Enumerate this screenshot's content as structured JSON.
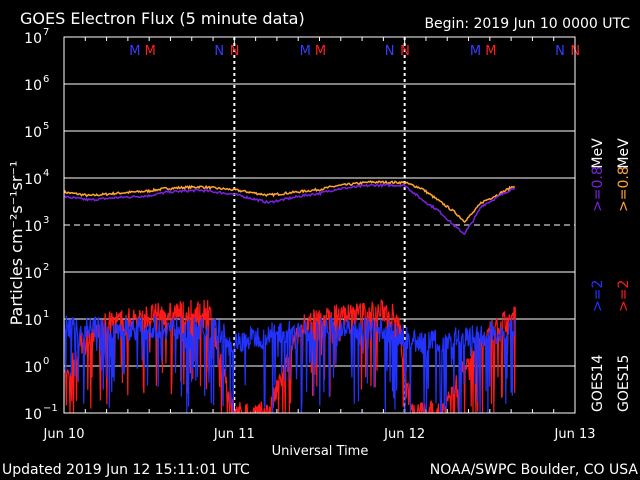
{
  "header": {
    "title": "GOES Electron Flux (5 minute data)",
    "begin": "Begin: 2019 Jun 10 0000 UTC"
  },
  "footer": {
    "updated": "Updated 2019 Jun 12 15:11:01 UTC",
    "credit": "NOAA/SWPC Boulder, CO USA"
  },
  "chart_data": {
    "type": "line",
    "title": "GOES Electron Flux (5 minute data)",
    "xlabel": "Universal Time",
    "ylabel": "Particles cm⁻²s⁻¹sr⁻¹",
    "yscale": "log",
    "ylim": [
      0.1,
      10000000.0
    ],
    "xlim_days": [
      0,
      3
    ],
    "x_ticks": [
      "Jun 10",
      "Jun 11",
      "Jun 12",
      "Jun 13"
    ],
    "y_ticks": [
      {
        "base": "10",
        "exp": "7"
      },
      {
        "base": "10",
        "exp": "6"
      },
      {
        "base": "10",
        "exp": "5"
      },
      {
        "base": "10",
        "exp": "4"
      },
      {
        "base": "10",
        "exp": "3"
      },
      {
        "base": "10",
        "exp": "2"
      },
      {
        "base": "10",
        "exp": "1"
      },
      {
        "base": "10",
        "exp": "0"
      },
      {
        "base": "10",
        "exp": "−1"
      }
    ],
    "threshold": 1000,
    "grid": true,
    "markers": [
      {
        "label": "M",
        "color": "#3a3aff",
        "day": 0.43
      },
      {
        "label": "M",
        "color": "#ff2020",
        "day": 0.52
      },
      {
        "label": "N",
        "color": "#3a3aff",
        "day": 0.93
      },
      {
        "label": "N",
        "color": "#ff2020",
        "day": 1.02
      },
      {
        "label": "M",
        "color": "#3a3aff",
        "day": 1.43
      },
      {
        "label": "M",
        "color": "#ff2020",
        "day": 1.52
      },
      {
        "label": "N",
        "color": "#3a3aff",
        "day": 1.93
      },
      {
        "label": "N",
        "color": "#ff2020",
        "day": 2.02
      },
      {
        "label": "M",
        "color": "#3a3aff",
        "day": 2.43
      },
      {
        "label": "M",
        "color": "#ff2020",
        "day": 2.52
      },
      {
        "label": "N",
        "color": "#3a3aff",
        "day": 2.93
      },
      {
        "label": "N",
        "color": "#ff2020",
        "day": 3.02
      }
    ],
    "series": [
      {
        "name": ">=0.8 MeV",
        "satellite": "GOES15",
        "color": "#ffa530",
        "x": [
          0,
          0.15,
          0.3,
          0.5,
          0.6,
          0.8,
          1.0,
          1.2,
          1.4,
          1.5,
          1.6,
          1.8,
          2.0,
          2.1,
          2.3,
          2.35,
          2.4,
          2.45,
          2.55,
          2.65
        ],
        "y": [
          5000,
          4200,
          4700,
          5300,
          6000,
          6500,
          5600,
          4300,
          5200,
          5700,
          6800,
          8200,
          8000,
          6000,
          1800,
          1200,
          1800,
          3000,
          4500,
          7000
        ]
      },
      {
        "name": ">=0.8 MeV",
        "satellite": "GOES14",
        "color": "#7a22e0",
        "x": [
          0,
          0.15,
          0.3,
          0.5,
          0.6,
          0.8,
          1.0,
          1.2,
          1.4,
          1.5,
          1.6,
          1.8,
          2.0,
          2.1,
          2.2,
          2.3,
          2.35,
          2.4,
          2.45,
          2.55,
          2.65
        ],
        "y": [
          4000,
          3400,
          3800,
          4200,
          5000,
          5500,
          4500,
          3000,
          4200,
          4700,
          5800,
          7000,
          7000,
          3500,
          2000,
          900,
          650,
          1200,
          2500,
          4000,
          6500
        ]
      },
      {
        "name": ">=2 MeV",
        "satellite": "GOES14",
        "color": "#2233ff",
        "x": [
          0,
          0.3,
          0.6,
          0.9,
          1.0,
          1.2,
          1.5,
          1.8,
          1.95,
          2.1,
          2.3,
          2.5,
          2.65
        ],
        "y": [
          7,
          6,
          6.5,
          6,
          3,
          5,
          6,
          6,
          5,
          3,
          4,
          5,
          6
        ]
      },
      {
        "name": ">=2 MeV",
        "satellite": "GOES15",
        "color": "#ff1a1a",
        "x": [
          0,
          0.1,
          0.25,
          0.45,
          0.65,
          0.85,
          1.0,
          1.2,
          1.4,
          1.6,
          1.8,
          1.95,
          2.05,
          2.2,
          2.4,
          2.5,
          2.65
        ],
        "y": [
          0.5,
          3,
          8,
          11,
          14,
          15,
          0.1,
          0.1,
          8,
          12,
          14,
          15,
          0.1,
          0.1,
          2,
          5,
          12
        ]
      }
    ]
  },
  "legend": {
    "goes14_label": "GOES14",
    "goes15_label": "GOES15",
    "g14_mev2": ">=2",
    "g15_mev2": ">=2",
    "g14_mev08": ">=0.8",
    "g15_mev08": ">=0.8",
    "mev_unit": "MeV",
    "colors": {
      "g14_mev08": "#7a22e0",
      "g15_mev08": "#ffa530",
      "g14_mev2": "#2233ff",
      "g15_mev2": "#ff1a1a"
    }
  }
}
